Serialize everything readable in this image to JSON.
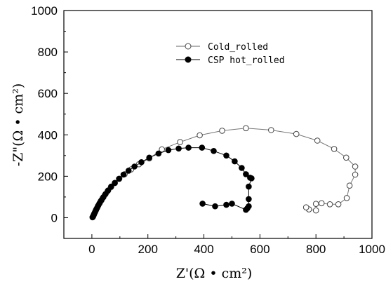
{
  "chart_data": {
    "type": "scatter",
    "xlabel": "Z'(Ω • cm²)",
    "ylabel": "-Z\"(Ω • cm²)",
    "xlim": [
      -100,
      1000
    ],
    "ylim": [
      -100,
      1000
    ],
    "x_ticks": [
      "0",
      "200",
      "400",
      "600",
      "800",
      "1000"
    ],
    "y_ticks": [
      "0",
      "200",
      "400",
      "600",
      "800",
      "1000"
    ],
    "grid": false,
    "legend_position": "upper-right",
    "series": [
      {
        "name": "Cold_rolled",
        "marker": "open-circle",
        "color": "#666666",
        "points": [
          [
            2,
            2
          ],
          [
            4,
            6
          ],
          [
            6,
            12
          ],
          [
            8,
            18
          ],
          [
            11,
            26
          ],
          [
            14,
            35
          ],
          [
            17,
            44
          ],
          [
            21,
            55
          ],
          [
            26,
            67
          ],
          [
            31,
            79
          ],
          [
            38,
            94
          ],
          [
            46,
            110
          ],
          [
            56,
            128
          ],
          [
            68,
            147
          ],
          [
            82,
            167
          ],
          [
            98,
            188
          ],
          [
            117,
            210
          ],
          [
            140,
            233
          ],
          [
            168,
            258
          ],
          [
            205,
            286
          ],
          [
            250,
            330
          ],
          [
            315,
            365
          ],
          [
            385,
            398
          ],
          [
            465,
            420
          ],
          [
            550,
            432
          ],
          [
            640,
            423
          ],
          [
            730,
            404
          ],
          [
            805,
            372
          ],
          [
            865,
            332
          ],
          [
            908,
            290
          ],
          [
            940,
            247
          ],
          [
            940,
            208
          ],
          [
            920,
            155
          ],
          [
            910,
            95
          ],
          [
            880,
            65
          ],
          [
            850,
            65
          ],
          [
            820,
            70
          ],
          [
            800,
            67
          ],
          [
            800,
            35
          ],
          [
            775,
            40
          ],
          [
            765,
            50
          ]
        ]
      },
      {
        "name": "CSP hot_rolled",
        "marker": "filled-circle",
        "color": "#000000",
        "points": [
          [
            3,
            3
          ],
          [
            5,
            8
          ],
          [
            7,
            14
          ],
          [
            9,
            21
          ],
          [
            12,
            29
          ],
          [
            15,
            38
          ],
          [
            19,
            48
          ],
          [
            23,
            59
          ],
          [
            28,
            71
          ],
          [
            34,
            84
          ],
          [
            41,
            99
          ],
          [
            49,
            115
          ],
          [
            58,
            132
          ],
          [
            69,
            150
          ],
          [
            82,
            168
          ],
          [
            97,
            188
          ],
          [
            113,
            208
          ],
          [
            131,
            227
          ],
          [
            152,
            247
          ],
          [
            177,
            268
          ],
          [
            205,
            290
          ],
          [
            238,
            310
          ],
          [
            273,
            326
          ],
          [
            310,
            334
          ],
          [
            345,
            338
          ],
          [
            393,
            338
          ],
          [
            435,
            322
          ],
          [
            480,
            300
          ],
          [
            510,
            272
          ],
          [
            535,
            240
          ],
          [
            550,
            210
          ],
          [
            565,
            193
          ],
          [
            570,
            190
          ],
          [
            560,
            150
          ],
          [
            560,
            90
          ],
          [
            560,
            55
          ],
          [
            555,
            45
          ],
          [
            550,
            38
          ],
          [
            500,
            68
          ],
          [
            480,
            62
          ],
          [
            440,
            55
          ],
          [
            395,
            68
          ]
        ]
      }
    ]
  }
}
